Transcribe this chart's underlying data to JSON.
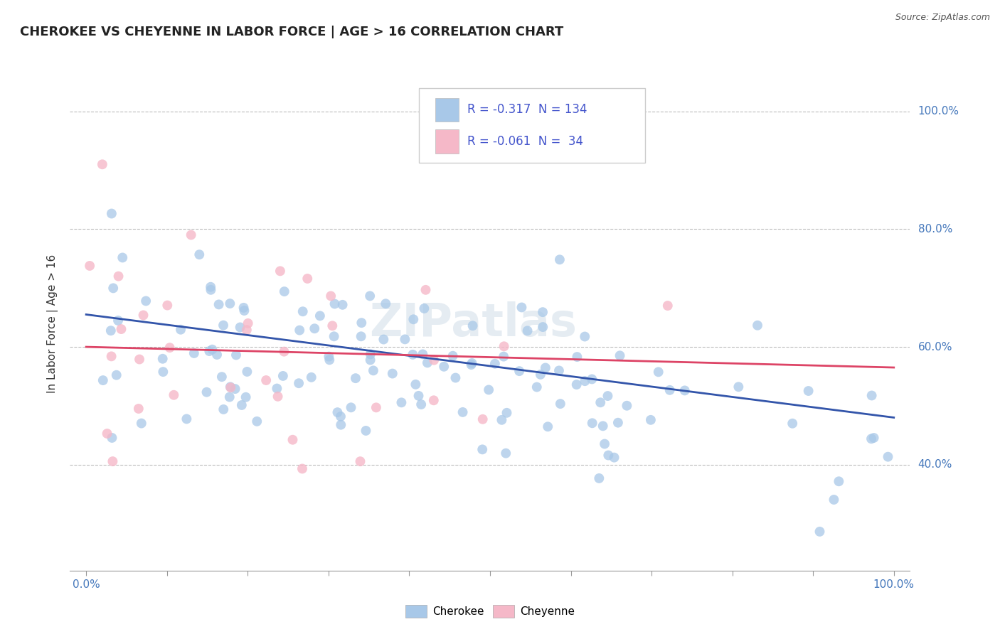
{
  "title": "CHEROKEE VS CHEYENNE IN LABOR FORCE | AGE > 16 CORRELATION CHART",
  "source": "Source: ZipAtlas.com",
  "ylabel": "In Labor Force | Age > 16",
  "xlim": [
    -0.02,
    1.02
  ],
  "ylim": [
    0.22,
    1.06
  ],
  "ytick_values": [
    0.4,
    0.6,
    0.8,
    1.0
  ],
  "xtick_values": [
    0.0,
    1.0
  ],
  "xtick_labels": [
    "0.0%",
    "100.0%"
  ],
  "ytick_labels": [
    "40.0%",
    "60.0%",
    "80.0%",
    "100.0%"
  ],
  "cherokee_R": "-0.317",
  "cherokee_N": "134",
  "cheyenne_R": "-0.061",
  "cheyenne_N": " 34",
  "cherokee_color": "#a8c8e8",
  "cheyenne_color": "#f5b8c8",
  "cherokee_line_color": "#3355aa",
  "cheyenne_line_color": "#dd4466",
  "watermark": "ZIPatlas",
  "background_color": "#ffffff",
  "grid_color": "#bbbbbb",
  "title_color": "#222222",
  "tick_color": "#4477bb",
  "legend_text_color": "#4455cc"
}
